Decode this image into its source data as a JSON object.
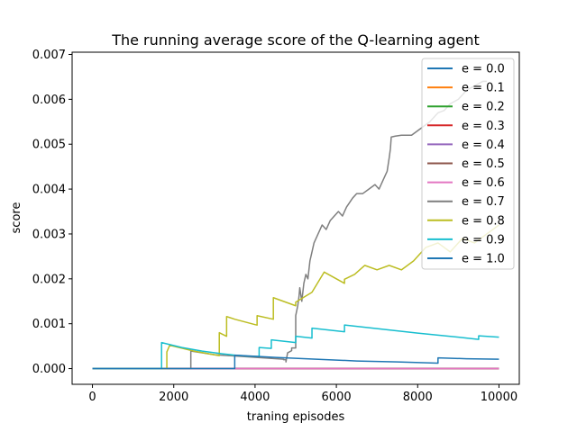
{
  "chart_data": {
    "type": "line",
    "title": "The running average score of the Q-learning agent",
    "xlabel": "traning episodes",
    "ylabel": "score",
    "xlim": [
      -500,
      10500
    ],
    "ylim": [
      -0.00035,
      0.00705
    ],
    "xticks": [
      0,
      2000,
      4000,
      6000,
      8000,
      10000
    ],
    "xtick_labels": [
      "0",
      "2000",
      "4000",
      "6000",
      "8000",
      "10000"
    ],
    "yticks": [
      0,
      0.001,
      0.002,
      0.003,
      0.004,
      0.005,
      0.006,
      0.007
    ],
    "ytick_labels": [
      "0.000",
      "0.001",
      "0.002",
      "0.003",
      "0.004",
      "0.005",
      "0.006",
      "0.007"
    ],
    "grid": false,
    "legend_position": "top-right",
    "series": [
      {
        "name": "e = 0.0",
        "color": "#1f77b4",
        "points": [
          [
            0,
            0
          ],
          [
            10000,
            0
          ]
        ]
      },
      {
        "name": "e = 0.1",
        "color": "#ff7f0e",
        "points": [
          [
            0,
            0
          ],
          [
            10000,
            0
          ]
        ]
      },
      {
        "name": "e = 0.2",
        "color": "#2ca02c",
        "points": [
          [
            0,
            0
          ],
          [
            10000,
            0
          ]
        ]
      },
      {
        "name": "e = 0.3",
        "color": "#d62728",
        "points": [
          [
            0,
            0
          ],
          [
            10000,
            0
          ]
        ]
      },
      {
        "name": "e = 0.4",
        "color": "#9467bd",
        "points": [
          [
            0,
            0
          ],
          [
            10000,
            0
          ]
        ]
      },
      {
        "name": "e = 0.5",
        "color": "#8c564b",
        "points": [
          [
            0,
            0
          ],
          [
            10000,
            0
          ]
        ]
      },
      {
        "name": "e = 0.6",
        "color": "#e377c2",
        "points": [
          [
            0,
            0
          ],
          [
            10000,
            0
          ]
        ]
      },
      {
        "name": "e = 0.7",
        "color": "#7f7f7f",
        "points": [
          [
            0,
            0
          ],
          [
            2420,
            0
          ],
          [
            2420,
            0.00039
          ],
          [
            2430,
            0.00039
          ],
          [
            3000,
            0.00031
          ],
          [
            3000,
            0.00031
          ],
          [
            4700,
            0.00021
          ],
          [
            4700,
            0.0002
          ],
          [
            4760,
            0.0002
          ],
          [
            4760,
            0.00015
          ],
          [
            4800,
            0.00035
          ],
          [
            4900,
            0.0004
          ],
          [
            4900,
            0.00046
          ],
          [
            5000,
            0.00046
          ],
          [
            5000,
            0.00118
          ],
          [
            5050,
            0.0014
          ],
          [
            5080,
            0.0016
          ],
          [
            5100,
            0.0018
          ],
          [
            5150,
            0.0015
          ],
          [
            5200,
            0.0019
          ],
          [
            5250,
            0.0021
          ],
          [
            5300,
            0.002
          ],
          [
            5350,
            0.0024
          ],
          [
            5400,
            0.0026
          ],
          [
            5450,
            0.0028
          ],
          [
            5550,
            0.003
          ],
          [
            5650,
            0.0032
          ],
          [
            5750,
            0.0031
          ],
          [
            5850,
            0.0033
          ],
          [
            5950,
            0.0034
          ],
          [
            6050,
            0.0035
          ],
          [
            6150,
            0.0034
          ],
          [
            6250,
            0.0036
          ],
          [
            6400,
            0.0038
          ],
          [
            6500,
            0.0039
          ],
          [
            6650,
            0.0039
          ],
          [
            6800,
            0.004
          ],
          [
            6950,
            0.0041
          ],
          [
            7050,
            0.004
          ],
          [
            7150,
            0.0042
          ],
          [
            7250,
            0.0044
          ],
          [
            7300,
            0.0047
          ],
          [
            7330,
            0.0049
          ],
          [
            7350,
            0.00516
          ],
          [
            7450,
            0.00518
          ],
          [
            7600,
            0.0052
          ],
          [
            7750,
            0.0052
          ],
          [
            7850,
            0.0052
          ],
          [
            8000,
            0.0053
          ],
          [
            8150,
            0.0054
          ],
          [
            8300,
            0.0055
          ],
          [
            8500,
            0.0057
          ],
          [
            8650,
            0.00575
          ],
          [
            8800,
            0.0059
          ],
          [
            9000,
            0.006
          ],
          [
            9200,
            0.0062
          ],
          [
            9400,
            0.0063
          ],
          [
            9600,
            0.0064
          ],
          [
            9700,
            0.0064
          ]
        ]
      },
      {
        "name": "e = 0.8",
        "color": "#bcbd22",
        "points": [
          [
            0,
            0
          ],
          [
            1830,
            0
          ],
          [
            1830,
            0.00037
          ],
          [
            1900,
            0.00052
          ],
          [
            2500,
            0.00039
          ],
          [
            3050,
            0.0003
          ],
          [
            3120,
            0.00029
          ],
          [
            3120,
            0.0008
          ],
          [
            3300,
            0.00072
          ],
          [
            3300,
            0.00116
          ],
          [
            3500,
            0.0011
          ],
          [
            4000,
            0.00098
          ],
          [
            4050,
            0.00097
          ],
          [
            4050,
            0.00118
          ],
          [
            4450,
            0.0011
          ],
          [
            4450,
            0.00158
          ],
          [
            5000,
            0.0014
          ],
          [
            5000,
            0.00148
          ],
          [
            5400,
            0.0017
          ],
          [
            5700,
            0.00215
          ],
          [
            6000,
            0.002
          ],
          [
            6200,
            0.0019
          ],
          [
            6200,
            0.00199
          ],
          [
            6450,
            0.0021
          ],
          [
            6700,
            0.0023
          ],
          [
            7000,
            0.0022
          ],
          [
            7300,
            0.0023
          ],
          [
            7600,
            0.0022
          ],
          [
            7900,
            0.0024
          ],
          [
            8200,
            0.0027
          ],
          [
            8500,
            0.0028
          ],
          [
            8800,
            0.0026
          ],
          [
            9100,
            0.0029
          ],
          [
            9400,
            0.0028
          ],
          [
            9700,
            0.003
          ],
          [
            10000,
            0.0032
          ]
        ]
      },
      {
        "name": "e = 0.9",
        "color": "#17becf",
        "points": [
          [
            0,
            0
          ],
          [
            1700,
            0
          ],
          [
            1700,
            0.00058
          ],
          [
            2200,
            0.00047
          ],
          [
            2700,
            0.00039
          ],
          [
            3200,
            0.00033
          ],
          [
            3500,
            0.0003
          ],
          [
            3800,
            0.00028
          ],
          [
            4100,
            0.00027
          ],
          [
            4100,
            0.00047
          ],
          [
            4400,
            0.00045
          ],
          [
            4400,
            0.00064
          ],
          [
            4700,
            0.00061
          ],
          [
            5000,
            0.00058
          ],
          [
            5000,
            0.00072
          ],
          [
            5400,
            0.00068
          ],
          [
            5400,
            0.0009
          ],
          [
            5800,
            0.00086
          ],
          [
            6200,
            0.00082
          ],
          [
            6200,
            0.00097
          ],
          [
            7000,
            0.00089
          ],
          [
            8000,
            0.00079
          ],
          [
            9000,
            0.0007
          ],
          [
            9500,
            0.00065
          ],
          [
            9500,
            0.00073
          ],
          [
            10000,
            0.0007
          ]
        ]
      },
      {
        "name": "e = 1.0",
        "color": "#1f77b4",
        "points": [
          [
            0,
            0
          ],
          [
            3500,
            0
          ],
          [
            3500,
            0.0003
          ],
          [
            4500,
            0.00025
          ],
          [
            5500,
            0.00021
          ],
          [
            6500,
            0.00017
          ],
          [
            7500,
            0.00015
          ],
          [
            8500,
            0.00012
          ],
          [
            8500,
            0.00024
          ],
          [
            9200,
            0.00022
          ],
          [
            10000,
            0.00021
          ]
        ]
      }
    ]
  }
}
